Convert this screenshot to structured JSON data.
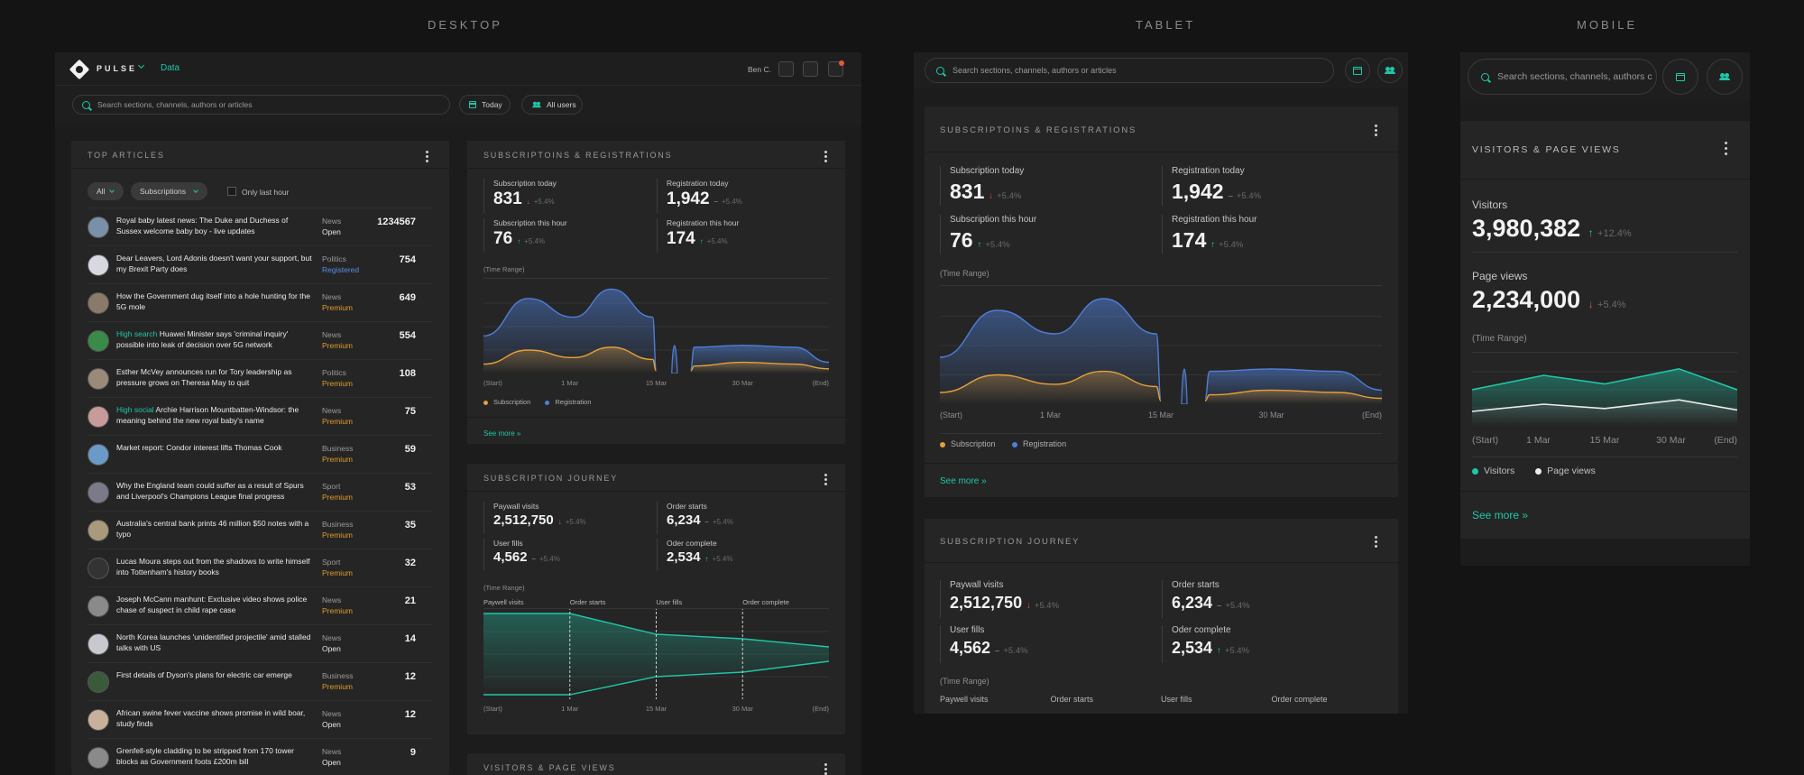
{
  "labels": {
    "desktop": "DESKTOP",
    "tablet": "TABLET",
    "mobile": "MOBILE"
  },
  "colors": {
    "accent": "#1fc7a8",
    "subscription": "#e5a03a",
    "registration": "#4f7fd6",
    "down": "#e05a3a",
    "premium": "#e09a2a",
    "registered": "#5b8ee6"
  },
  "app": {
    "brand": "PULSE",
    "nav_data": "Data",
    "user": "Ben C."
  },
  "search": {
    "placeholder": "Search sections, channels, authors or articles",
    "mobile_placeholder": "Search sections, channels, authors c"
  },
  "filters": {
    "today": "Today",
    "all_users": "All users"
  },
  "top_articles": {
    "title": "TOP ARTICLES",
    "filter_all": "All",
    "filter_subscriptions": "Subscriptions",
    "only_last_hour": "Only last hour",
    "rows": [
      {
        "highlight": "",
        "title": "Royal baby latest news: The Duke and Duchess of Sussex welcome baby boy - live updates",
        "category": "News",
        "status": "Open",
        "count": "1234567"
      },
      {
        "highlight": "",
        "title": "Dear Leavers, Lord Adonis doesn't want your support, but my Brexit Party does",
        "category": "Politics",
        "status": "Registered",
        "count": "754"
      },
      {
        "highlight": "",
        "title": "How the Government dug itself into a hole hunting for the 5G mole",
        "category": "News",
        "status": "Premium",
        "count": "649"
      },
      {
        "highlight": "High search",
        "title": "Huawei Minister says 'criminal inquiry' possible into leak of decision over 5G network",
        "category": "News",
        "status": "Premium",
        "count": "554"
      },
      {
        "highlight": "",
        "title": "Esther McVey announces run for Tory leadership as pressure grows on Theresa May to quit",
        "category": "Politics",
        "status": "Premium",
        "count": "108"
      },
      {
        "highlight": "High social",
        "title": "Archie Harrison Mountbatten-Windsor: the meaning behind the new royal baby's name",
        "category": "News",
        "status": "Premium",
        "count": "75"
      },
      {
        "highlight": "",
        "title": "Market report: Condor interest lifts Thomas Cook",
        "category": "Business",
        "status": "Premium",
        "count": "59"
      },
      {
        "highlight": "",
        "title": "Why the England team could suffer as a result of Spurs and Liverpool's Champions League final progress",
        "category": "Sport",
        "status": "Premium",
        "count": "53"
      },
      {
        "highlight": "",
        "title": "Australia's central bank prints 46 million $50 notes with a typo",
        "category": "Business",
        "status": "Premium",
        "count": "35"
      },
      {
        "highlight": "",
        "title": "Lucas Moura steps out from the shadows to write himself into Tottenham's history books",
        "category": "Sport",
        "status": "Premium",
        "count": "32"
      },
      {
        "highlight": "",
        "title": "Joseph McCann manhunt: Exclusive video shows police chase of suspect in child rape case",
        "category": "News",
        "status": "Premium",
        "count": "21"
      },
      {
        "highlight": "",
        "title": "North Korea launches 'unidentified projectile' amid stalled talks with US",
        "category": "News",
        "status": "Open",
        "count": "14"
      },
      {
        "highlight": "",
        "title": "First details of Dyson's plans for electric car emerge",
        "category": "Business",
        "status": "Premium",
        "count": "12"
      },
      {
        "highlight": "",
        "title": "African swine fever vaccine shows promise in wild boar, study finds",
        "category": "News",
        "status": "Open",
        "count": "12"
      },
      {
        "highlight": "",
        "title": "Grenfell-style cladding to be stripped from 170 tower blocks as Government foots £200m bill",
        "category": "News",
        "status": "Open",
        "count": "9"
      }
    ]
  },
  "subs": {
    "title": "SUBSCRIPTOINS & REGISTRATIONS",
    "metrics": [
      {
        "label": "Subscription today",
        "value": "831",
        "trend": "down",
        "delta": "+5.4%"
      },
      {
        "label": "Registration today",
        "value": "1,942",
        "trend": "flat",
        "delta": "+5.4%"
      },
      {
        "label": "Subscription this hour",
        "value": "76",
        "trend": "up",
        "delta": "+5.4%"
      },
      {
        "label": "Registration this hour",
        "value": "174",
        "trend": "up",
        "delta": "+5.4%"
      }
    ],
    "time_range": "(Time Range)",
    "legend": [
      "Subscription",
      "Registration"
    ],
    "see_more": "See more »"
  },
  "journey": {
    "title": "SUBSCRIPTION JOURNEY",
    "metrics": [
      {
        "label": "Paywall visits",
        "value": "2,512,750",
        "trend": "down",
        "delta": "+5.4%"
      },
      {
        "label": "Order starts",
        "value": "6,234",
        "trend": "flat",
        "delta": "+5.4%"
      },
      {
        "label": "User fills",
        "value": "4,562",
        "trend": "flat",
        "delta": "+5.4%"
      },
      {
        "label": "Oder complete",
        "value": "2,534",
        "trend": "up",
        "delta": "+5.4%"
      }
    ],
    "time_range": "(Time Range)",
    "stages_desktop": [
      "Paywell visits",
      "Order starts",
      "User fills",
      "Order complete"
    ],
    "stages_tablet": [
      "Paywell visits",
      "Order starts",
      "User fills",
      "Order complete"
    ]
  },
  "visitors": {
    "title": "VISITORS & PAGE VIEWS",
    "visitors_label": "Visitors",
    "visitors_value": "3,980,382",
    "visitors_trend": "up",
    "visitors_delta": "+12.4%",
    "pageviews_label": "Page views",
    "pageviews_value": "2,234,000",
    "pageviews_trend": "down",
    "pageviews_delta": "+5.4%",
    "time_range": "(Time Range)",
    "legend": [
      "Visitors",
      "Page views"
    ],
    "see_more": "See more »"
  },
  "xticks": [
    "(Start)",
    "1 Mar",
    "15 Mar",
    "30 Mar",
    "(End)"
  ],
  "icons": [
    "logo-icon",
    "chevron-down-icon",
    "exit-icon",
    "chat-icon",
    "bell-icon",
    "search-icon",
    "calendar-icon",
    "users-icon",
    "kebab-icon",
    "checkbox-icon",
    "arrow-up-icon",
    "arrow-down-icon",
    "dash-icon"
  ]
}
